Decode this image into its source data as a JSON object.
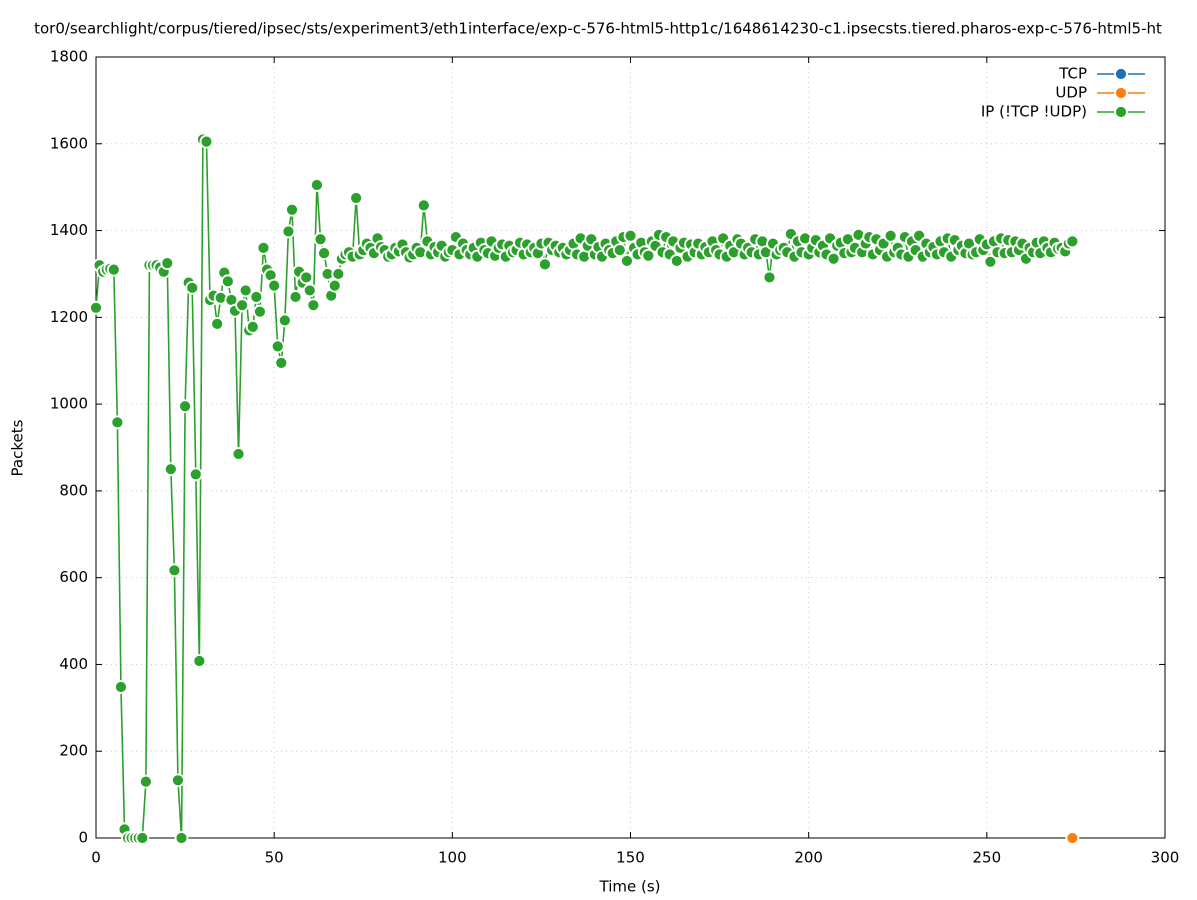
{
  "chart_data": {
    "type": "line",
    "title": "tor0/searchlight/corpus/tiered/ipsec/sts/experiment3/eth1interface/exp-c-576-html5-http1c/1648614230-c1.ipsecsts.tiered.pharos-exp-c-576-html5-ht",
    "x_label": "Time (s)",
    "y_label": "Packets",
    "xlim": [
      0,
      300
    ],
    "xticks": [
      0,
      50,
      100,
      150,
      200,
      250,
      300
    ],
    "ylim": [
      0,
      1800
    ],
    "yticks": [
      0,
      200,
      400,
      600,
      800,
      1000,
      1200,
      1400,
      1600,
      1800
    ],
    "grid": true,
    "legend": "top-right",
    "series": [
      {
        "name": "TCP",
        "color": "#1f6fb5",
        "x": [],
        "values": []
      },
      {
        "name": "UDP",
        "color": "#ff7f0e",
        "x": [
          274
        ],
        "values": [
          0
        ]
      },
      {
        "name": "IP (!TCP  !UDP)",
        "color": "#2ca02c",
        "x": [
          0,
          1,
          2,
          3,
          4,
          5,
          6,
          7,
          8,
          9,
          10,
          11,
          12,
          13,
          14,
          15,
          16,
          17,
          18,
          19,
          20,
          21,
          22,
          23,
          24,
          25,
          26,
          27,
          28,
          29,
          30,
          31,
          32,
          33,
          34,
          35,
          36,
          37,
          38,
          39,
          40,
          41,
          42,
          43,
          44,
          45,
          46,
          47,
          48,
          49,
          50,
          51,
          52,
          53,
          54,
          55,
          56,
          57,
          58,
          59,
          60,
          61,
          62,
          63,
          64,
          65,
          66,
          67,
          68,
          69,
          70,
          71,
          72,
          73,
          74,
          75,
          76,
          77,
          78,
          79,
          80,
          81,
          82,
          83,
          84,
          85,
          86,
          87,
          88,
          89,
          90,
          91,
          92,
          93,
          94,
          95,
          96,
          97,
          98,
          99,
          100,
          101,
          102,
          103,
          104,
          105,
          106,
          107,
          108,
          109,
          110,
          111,
          112,
          113,
          114,
          115,
          116,
          117,
          118,
          119,
          120,
          121,
          122,
          123,
          124,
          125,
          126,
          127,
          128,
          129,
          130,
          131,
          132,
          133,
          134,
          135,
          136,
          137,
          138,
          139,
          140,
          141,
          142,
          143,
          144,
          145,
          146,
          147,
          148,
          149,
          150,
          151,
          152,
          153,
          154,
          155,
          156,
          157,
          158,
          159,
          160,
          161,
          162,
          163,
          164,
          165,
          166,
          167,
          168,
          169,
          170,
          171,
          172,
          173,
          174,
          175,
          176,
          177,
          178,
          179,
          180,
          181,
          182,
          183,
          184,
          185,
          186,
          187,
          188,
          189,
          190,
          191,
          192,
          193,
          194,
          195,
          196,
          197,
          198,
          199,
          200,
          201,
          202,
          203,
          204,
          205,
          206,
          207,
          208,
          209,
          210,
          211,
          212,
          213,
          214,
          215,
          216,
          217,
          218,
          219,
          220,
          221,
          222,
          223,
          224,
          225,
          226,
          227,
          228,
          229,
          230,
          231,
          232,
          233,
          234,
          235,
          236,
          237,
          238,
          239,
          240,
          241,
          242,
          243,
          244,
          245,
          246,
          247,
          248,
          249,
          250,
          251,
          252,
          253,
          254,
          255,
          256,
          257,
          258,
          259,
          260,
          261,
          262,
          263,
          264,
          265,
          266,
          267,
          268,
          269,
          270,
          271,
          272,
          273,
          274
        ],
        "values": [
          1222,
          1320,
          1305,
          1310,
          1312,
          1310,
          958,
          348,
          20,
          0,
          0,
          0,
          0,
          0,
          130,
          1320,
          1320,
          1320,
          1315,
          1305,
          1325,
          850,
          617,
          133,
          0,
          995,
          1280,
          1268,
          838,
          408,
          1610,
          1605,
          1240,
          1250,
          1185,
          1245,
          1303,
          1283,
          1240,
          1215,
          885,
          1228,
          1262,
          1170,
          1178,
          1247,
          1213,
          1360,
          1310,
          1297,
          1273,
          1133,
          1095,
          1193,
          1398,
          1448,
          1247,
          1305,
          1280,
          1292,
          1262,
          1228,
          1505,
          1380,
          1348,
          1300,
          1250,
          1273,
          1300,
          1335,
          1345,
          1350,
          1340,
          1475,
          1345,
          1355,
          1370,
          1360,
          1348,
          1382,
          1362,
          1355,
          1340,
          1345,
          1360,
          1352,
          1368,
          1350,
          1338,
          1345,
          1360,
          1350,
          1458,
          1375,
          1345,
          1362,
          1350,
          1365,
          1340,
          1350,
          1355,
          1385,
          1345,
          1370,
          1355,
          1345,
          1360,
          1340,
          1372,
          1355,
          1348,
          1375,
          1342,
          1360,
          1368,
          1340,
          1365,
          1350,
          1355,
          1372,
          1345,
          1368,
          1350,
          1360,
          1348,
          1370,
          1322,
          1372,
          1355,
          1365,
          1350,
          1360,
          1345,
          1355,
          1370,
          1345,
          1382,
          1340,
          1365,
          1380,
          1345,
          1362,
          1340,
          1370,
          1355,
          1348,
          1375,
          1355,
          1385,
          1330,
          1388,
          1360,
          1345,
          1372,
          1350,
          1342,
          1375,
          1365,
          1390,
          1350,
          1385,
          1345,
          1375,
          1330,
          1360,
          1372,
          1340,
          1368,
          1350,
          1370,
          1345,
          1362,
          1350,
          1375,
          1355,
          1345,
          1382,
          1340,
          1365,
          1350,
          1380,
          1370,
          1345,
          1360,
          1350,
          1380,
          1345,
          1375,
          1350,
          1292,
          1370,
          1345,
          1355,
          1360,
          1350,
          1392,
          1340,
          1375,
          1350,
          1382,
          1345,
          1360,
          1378,
          1350,
          1365,
          1345,
          1382,
          1335,
          1365,
          1372,
          1348,
          1380,
          1350,
          1360,
          1390,
          1350,
          1370,
          1385,
          1345,
          1380,
          1355,
          1370,
          1340,
          1388,
          1350,
          1360,
          1345,
          1385,
          1340,
          1375,
          1355,
          1388,
          1340,
          1370,
          1350,
          1362,
          1345,
          1375,
          1350,
          1382,
          1340,
          1378,
          1355,
          1365,
          1348,
          1370,
          1345,
          1350,
          1380,
          1355,
          1368,
          1328,
          1375,
          1350,
          1382,
          1348,
          1378,
          1350,
          1375,
          1355,
          1370,
          1335,
          1360,
          1350,
          1372,
          1348,
          1375,
          1360,
          1350,
          1372,
          1358,
          1360,
          1352,
          1370,
          1375
        ]
      }
    ]
  }
}
